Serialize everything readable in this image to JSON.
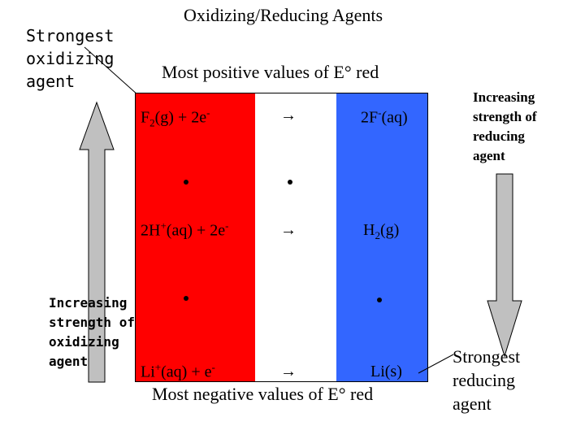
{
  "title": "Oxidizing/Reducing Agents",
  "left_top_label": [
    "Strongest",
    "oxidizing",
    "agent"
  ],
  "left_bottom_label": [
    "Increasing",
    "strength of",
    "oxidizing",
    "agent"
  ],
  "right_top_label": [
    "Increasing",
    "strength of",
    "reducing",
    "agent"
  ],
  "right_bottom_label": [
    "Strongest",
    "reducing",
    "agent"
  ],
  "top_caption": "Most positive values of E° red",
  "bottom_caption": "Most negative values of E° red",
  "arrow_symbol": "→",
  "reactions": [
    {
      "ox_base": "F",
      "ox_sub": "2",
      "ox_tail": "(g)  +  2e",
      "ox_sup": "-",
      "red_base": "2F",
      "red_sup": "-",
      "red_tail": "(aq)"
    },
    {
      "ox_base": "2H",
      "ox_sup": "+",
      "ox_tail": "(aq) + 2e",
      "ox_sup2": "-",
      "red_base": "H",
      "red_sub": "2",
      "red_tail": "(g)"
    },
    {
      "ox_base": "Li",
      "ox_sup": "+",
      "ox_tail": "(aq) + e",
      "ox_sup2": "-",
      "red_base": "Li(s)"
    }
  ],
  "colors": {
    "oxidized_band": "#ff0000",
    "reduced_band": "#3366ff",
    "arrow_fill": "#c0c0c0"
  }
}
